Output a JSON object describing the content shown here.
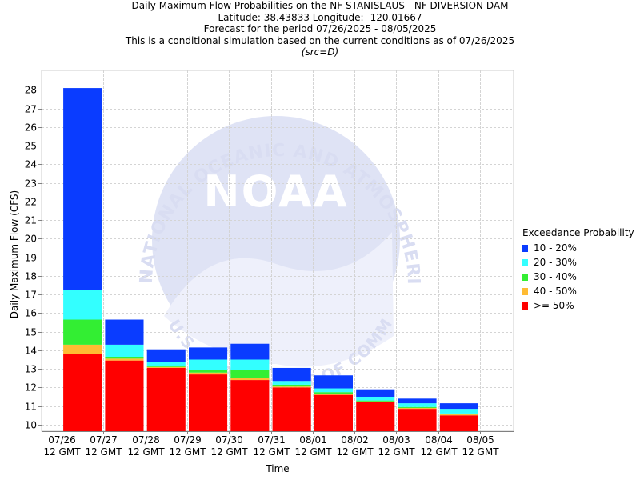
{
  "titles": {
    "line1": "Daily Maximum Flow Probabilities on the NF STANISLAUS - NF DIVERSION DAM",
    "line2": "Latitude: 38.43833 Longitude: -120.01667",
    "line3": "Forecast for the period 07/26/2025 - 08/05/2025",
    "line4": "This is a conditional simulation based on the current conditions as of 07/26/2025",
    "line5": "(src=D)"
  },
  "watermark": {
    "center_text": "NOAA",
    "arc_top": "NATIONAL OCEANIC AND ATMOSPHERIC ADMINISTRATION",
    "arc_bottom": "U.S. DEPARTMENT OF COMMERCE"
  },
  "legend": {
    "title": "Exceedance Probability",
    "items": [
      {
        "label": "10 - 20%",
        "color": "#0a3cff"
      },
      {
        "label": "20 - 30%",
        "color": "#33ffff"
      },
      {
        "label": "30 - 40%",
        "color": "#33ee33"
      },
      {
        "label": "40 - 50%",
        "color": "#ffbb33"
      },
      {
        "label": ">= 50%",
        "color": "#ff0000"
      }
    ]
  },
  "chart_data": {
    "type": "bar",
    "stacked": true,
    "xlabel": "Time",
    "ylabel": "Daily Maximum Flow (CFS)",
    "ylim": [
      9.65,
      29.05
    ],
    "yticks": [
      10,
      11,
      12,
      13,
      14,
      15,
      16,
      17,
      18,
      19,
      20,
      21,
      22,
      23,
      24,
      25,
      26,
      27,
      28
    ],
    "grid": true,
    "legend_position": "right",
    "x_ticks": [
      {
        "date": "07/26",
        "time": "12 GMT"
      },
      {
        "date": "07/27",
        "time": "12 GMT"
      },
      {
        "date": "07/28",
        "time": "12 GMT"
      },
      {
        "date": "07/29",
        "time": "12 GMT"
      },
      {
        "date": "07/30",
        "time": "12 GMT"
      },
      {
        "date": "07/31",
        "time": "12 GMT"
      },
      {
        "date": "08/01",
        "time": "12 GMT"
      },
      {
        "date": "08/02",
        "time": "12 GMT"
      },
      {
        "date": "08/03",
        "time": "12 GMT"
      },
      {
        "date": "08/04",
        "time": "12 GMT"
      },
      {
        "date": "08/05",
        "time": "12 GMT"
      }
    ],
    "series_order": [
      ">= 50%",
      "40 - 50%",
      "30 - 40%",
      "20 - 30%",
      "10 - 20%"
    ],
    "bars": [
      {
        "period": "07/26-07/27",
        "levels": [
          13.8,
          14.3,
          15.65,
          17.25,
          28.1
        ]
      },
      {
        "period": "07/27-07/28",
        "levels": [
          13.45,
          13.55,
          13.65,
          14.3,
          15.65
        ]
      },
      {
        "period": "07/28-07/29",
        "levels": [
          13.05,
          13.1,
          13.15,
          13.35,
          14.05
        ]
      },
      {
        "period": "07/29-07/30",
        "levels": [
          12.7,
          12.8,
          12.95,
          13.5,
          14.15
        ]
      },
      {
        "period": "07/30-07/31",
        "levels": [
          12.4,
          12.5,
          12.95,
          13.5,
          14.35
        ]
      },
      {
        "period": "07/31-08/01",
        "levels": [
          12.0,
          12.05,
          12.15,
          12.35,
          13.05
        ]
      },
      {
        "period": "08/01-08/02",
        "levels": [
          11.6,
          11.65,
          11.75,
          11.95,
          12.65
        ]
      },
      {
        "period": "08/02-08/03",
        "levels": [
          11.2,
          11.25,
          11.3,
          11.5,
          11.9
        ]
      },
      {
        "period": "08/03-08/04",
        "levels": [
          10.85,
          10.9,
          10.95,
          11.15,
          11.4
        ]
      },
      {
        "period": "08/04-08/05",
        "levels": [
          10.5,
          10.55,
          10.6,
          10.85,
          11.15
        ]
      }
    ]
  }
}
